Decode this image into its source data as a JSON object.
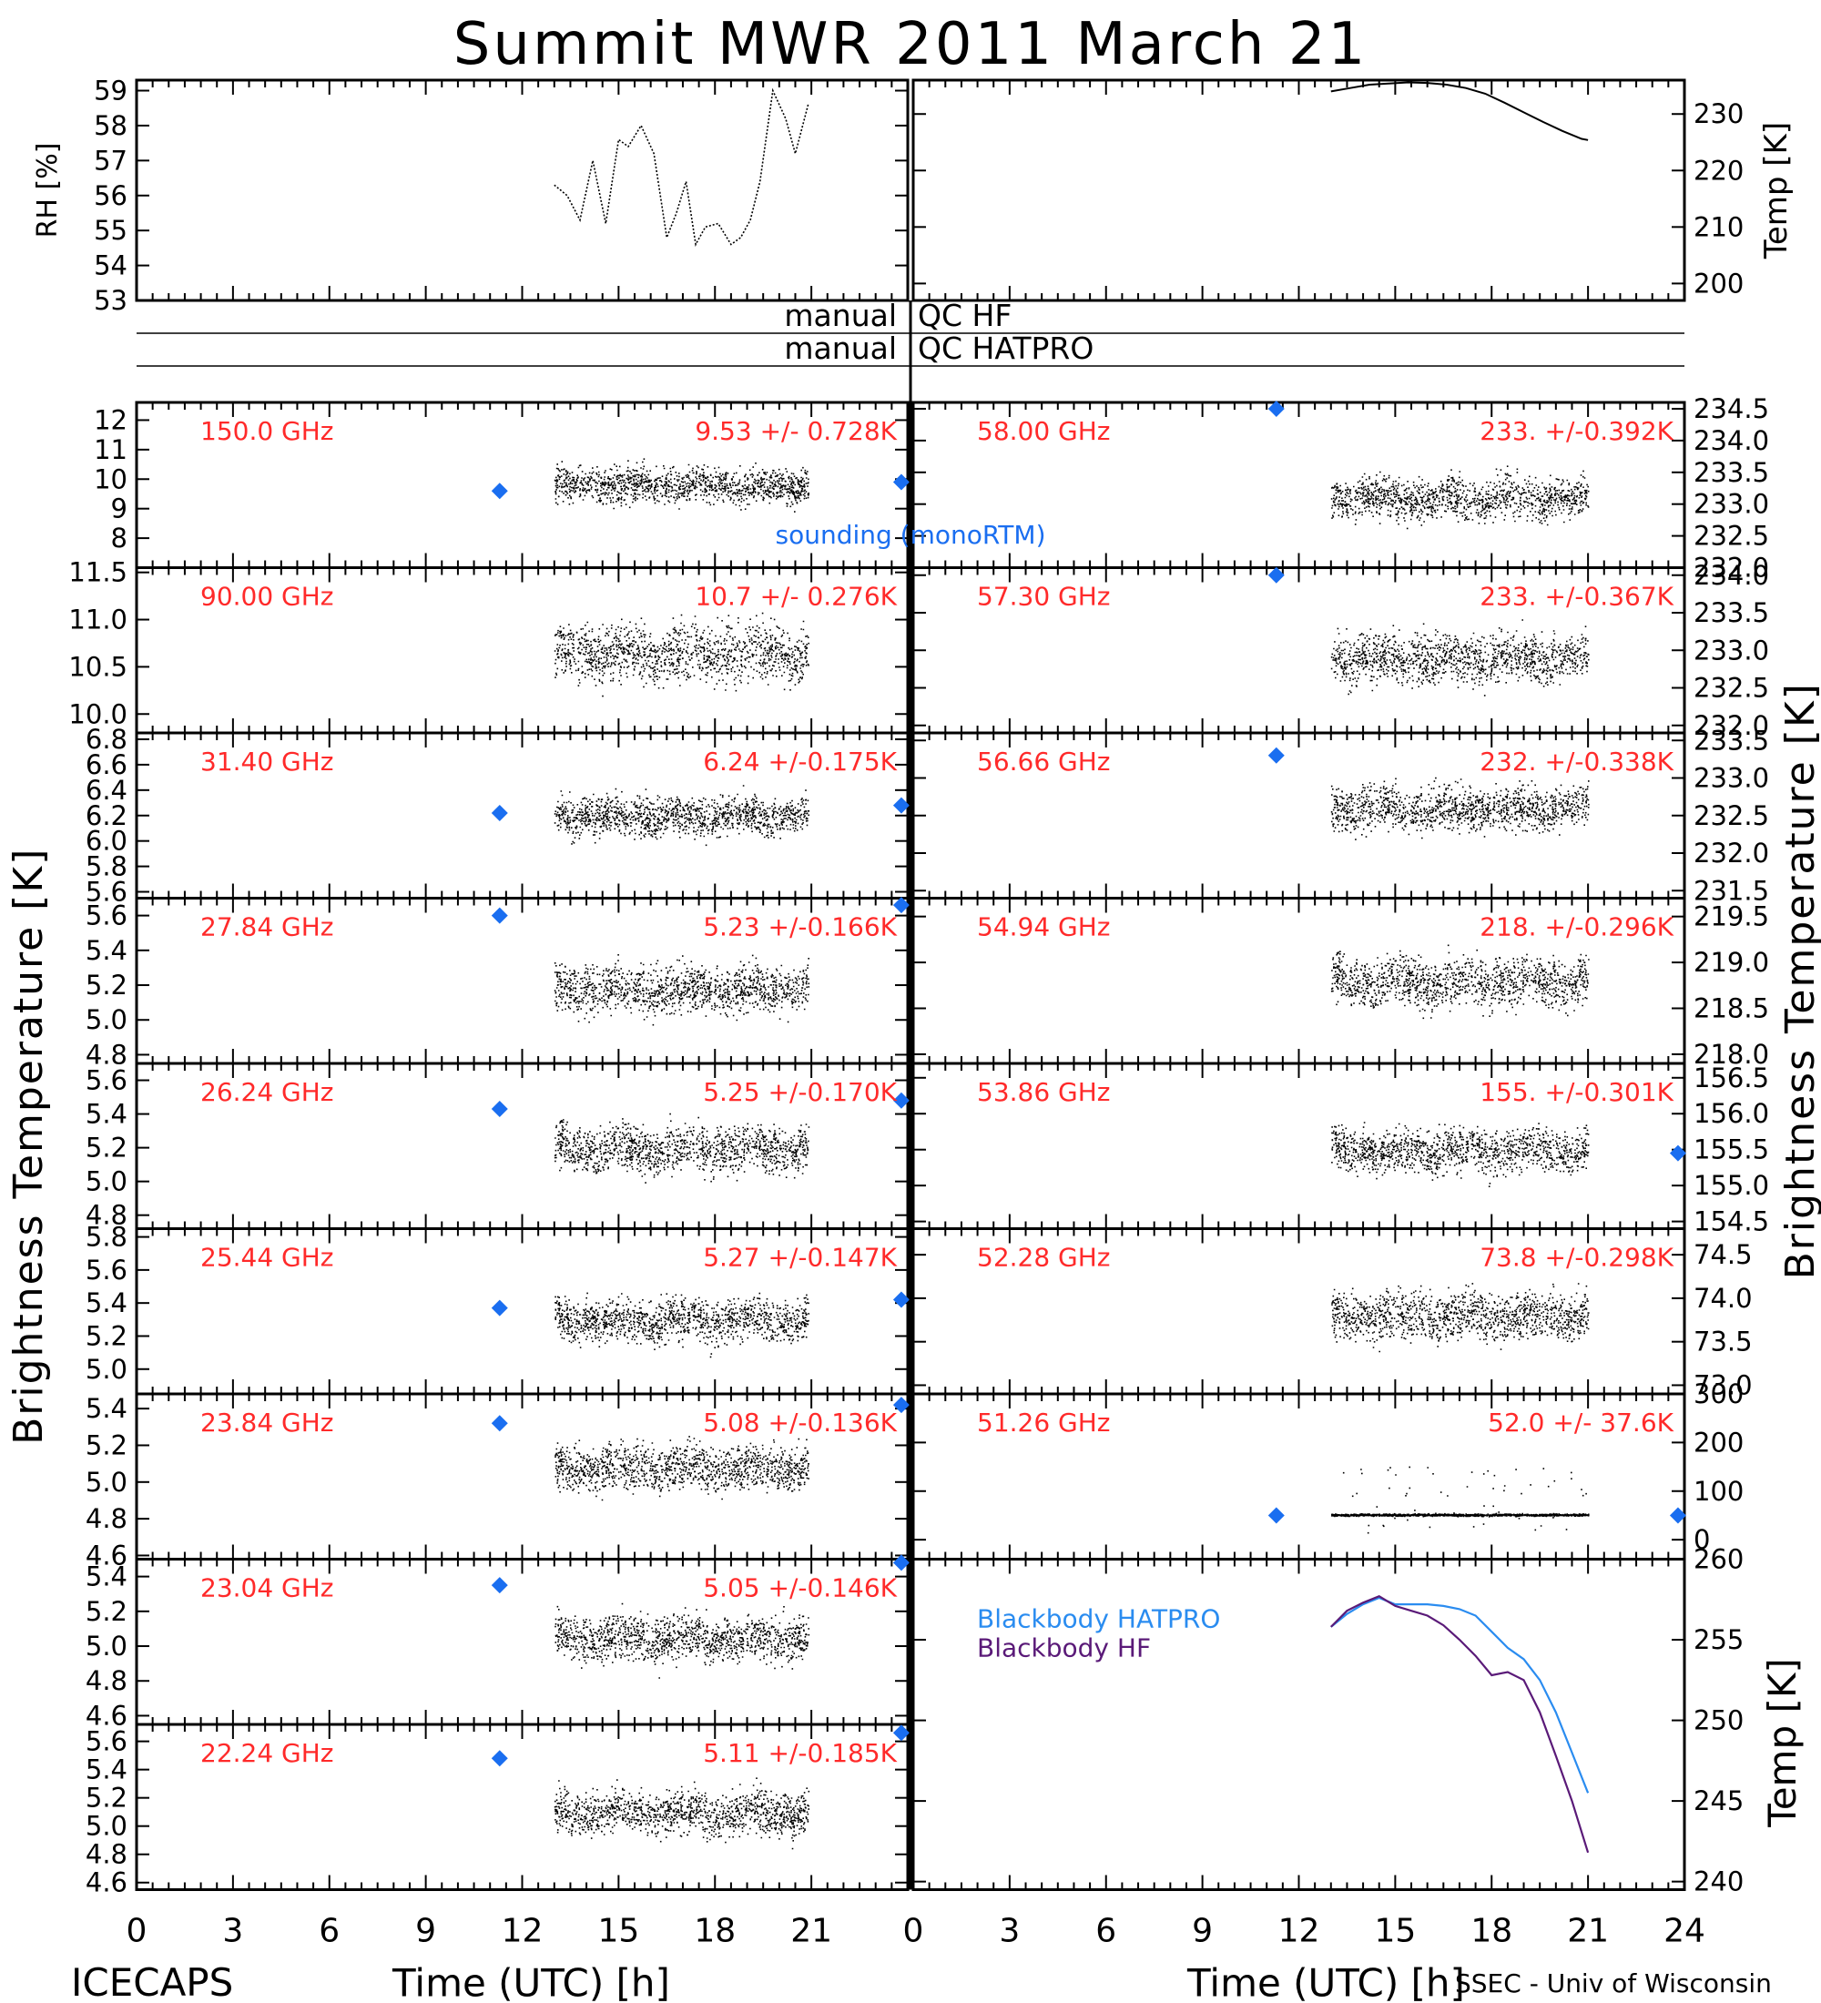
{
  "title": "Summit MWR 2011 March 21",
  "footer": {
    "left": "ICECAPS",
    "right": "SSEC - Univ of Wisconsin"
  },
  "xaxis": {
    "label": "Time (UTC) [h]",
    "ticks": [
      "0",
      "3",
      "6",
      "9",
      "12",
      "15",
      "18",
      "21",
      "24"
    ]
  },
  "axis_labels": {
    "rh": "RH [%]",
    "temp": "Temp [K]",
    "tb": "Brightness Temperature [K]"
  },
  "qc": {
    "hf": "manual QC HF",
    "hatpro": "manual QC HATPRO"
  },
  "legend": {
    "sounding": "sounding (monoRTM)",
    "bb_hatpro": "Blackbody HATPRO",
    "bb_hf": "Blackbody HF"
  },
  "colors": {
    "label": "#ff2a2a",
    "sounding": "#1a6ef0",
    "bb_hatpro": "#2a8cf0",
    "bb_hf": "#5a1a78",
    "data": "#000000"
  },
  "chart_data": [
    {
      "type": "line",
      "id": "rh",
      "ylabel": "RH [%]",
      "ylim": [
        53,
        59.3
      ],
      "yticks": [
        "53",
        "54",
        "55",
        "56",
        "57",
        "58",
        "59"
      ],
      "series": [
        {
          "x": [
            13.0,
            13.4,
            13.8,
            14.2,
            14.6,
            15.0,
            15.3,
            15.7,
            16.1,
            16.5,
            16.8,
            17.1,
            17.4,
            17.7,
            18.1,
            18.5,
            18.8,
            19.1,
            19.4,
            19.8,
            20.2,
            20.5,
            20.9
          ],
          "y": [
            56.3,
            56.0,
            55.3,
            57.0,
            55.2,
            57.6,
            57.4,
            58.0,
            57.2,
            54.8,
            55.5,
            56.4,
            54.6,
            55.1,
            55.2,
            54.6,
            54.8,
            55.3,
            56.4,
            59.0,
            58.2,
            57.2,
            58.6
          ]
        }
      ]
    },
    {
      "type": "line",
      "id": "temp",
      "ylabel": "Temp [K]",
      "ylim": [
        197,
        236
      ],
      "yticks": [
        "200",
        "210",
        "220",
        "230"
      ],
      "series": [
        {
          "x": [
            13.0,
            13.6,
            14.2,
            14.8,
            15.4,
            16.0,
            16.6,
            17.2,
            17.8,
            18.4,
            19.0,
            19.6,
            20.2,
            20.8,
            21.0
          ],
          "y": [
            234.0,
            234.6,
            235.2,
            235.4,
            235.6,
            235.5,
            235.2,
            234.6,
            233.6,
            232.0,
            230.3,
            228.6,
            227.0,
            225.6,
            225.4
          ]
        }
      ]
    },
    {
      "type": "scatter",
      "id": "ch-150",
      "label": "150.0 GHz",
      "stats": "9.53 +/- 0.728K",
      "ylim": [
        7,
        12.6
      ],
      "yticks": [
        "8",
        "9",
        "10",
        "11",
        "12"
      ],
      "mean": 9.8,
      "noise": 0.55,
      "sounding": [
        {
          "x": 11.3,
          "y": 9.6
        },
        {
          "x": 23.8,
          "y": 9.9
        }
      ]
    },
    {
      "type": "scatter",
      "id": "ch-5800",
      "label": "58.00 GHz",
      "stats": "233. +/-0.392K",
      "ylim": [
        232,
        234.6
      ],
      "yticks": [
        "232.0",
        "232.5",
        "233.0",
        "233.5",
        "234.0",
        "234.5"
      ],
      "mean": 233.1,
      "noise": 0.3,
      "sounding": [
        {
          "x": 11.3,
          "y": 234.5
        }
      ]
    },
    {
      "type": "scatter",
      "id": "ch-9000",
      "label": "90.00 GHz",
      "stats": "10.7 +/- 0.276K",
      "ylim": [
        9.8,
        11.55
      ],
      "yticks": [
        "10.0",
        "10.5",
        "11.0",
        "11.5"
      ],
      "mean": 10.65,
      "noise": 0.28,
      "sounding": []
    },
    {
      "type": "scatter",
      "id": "ch-5730",
      "label": "57.30 GHz",
      "stats": "233. +/-0.367K",
      "ylim": [
        231.9,
        234.1
      ],
      "yticks": [
        "232.0",
        "232.5",
        "233.0",
        "233.5",
        "234.0"
      ],
      "mean": 232.9,
      "noise": 0.3,
      "sounding": [
        {
          "x": 11.3,
          "y": 234.0
        }
      ]
    },
    {
      "type": "scatter",
      "id": "ch-3140",
      "label": "31.40 GHz",
      "stats": "6.24 +/-0.175K",
      "ylim": [
        5.55,
        6.85
      ],
      "yticks": [
        "5.6",
        "5.8",
        "6.0",
        "6.2",
        "6.4",
        "6.6",
        "6.8"
      ],
      "mean": 6.2,
      "noise": 0.14,
      "sounding": [
        {
          "x": 11.3,
          "y": 6.22
        },
        {
          "x": 23.8,
          "y": 6.28
        }
      ]
    },
    {
      "type": "scatter",
      "id": "ch-5666",
      "label": "56.66 GHz",
      "stats": "232. +/-0.338K",
      "ylim": [
        231.4,
        233.6
      ],
      "yticks": [
        "231.5",
        "232.0",
        "232.5",
        "233.0",
        "233.5"
      ],
      "mean": 232.6,
      "noise": 0.28,
      "sounding": [
        {
          "x": 11.3,
          "y": 233.3
        }
      ]
    },
    {
      "type": "scatter",
      "id": "ch-2784",
      "label": "27.84 GHz",
      "stats": "5.23 +/-0.166K",
      "ylim": [
        4.75,
        5.7
      ],
      "yticks": [
        "4.8",
        "5.0",
        "5.2",
        "5.4",
        "5.6"
      ],
      "mean": 5.18,
      "noise": 0.13,
      "sounding": [
        {
          "x": 11.3,
          "y": 5.6
        },
        {
          "x": 23.8,
          "y": 5.66
        }
      ]
    },
    {
      "type": "scatter",
      "id": "ch-5494",
      "label": "54.94 GHz",
      "stats": "218. +/-0.296K",
      "ylim": [
        217.9,
        219.7
      ],
      "yticks": [
        "218.0",
        "218.5",
        "219.0",
        "219.5"
      ],
      "mean": 218.8,
      "noise": 0.25,
      "sounding": []
    },
    {
      "type": "scatter",
      "id": "ch-2624",
      "label": "26.24 GHz",
      "stats": "5.25 +/-0.170K",
      "ylim": [
        4.72,
        5.7
      ],
      "yticks": [
        "4.8",
        "5.0",
        "5.2",
        "5.4",
        "5.6"
      ],
      "mean": 5.2,
      "noise": 0.13,
      "sounding": [
        {
          "x": 11.3,
          "y": 5.43
        },
        {
          "x": 23.8,
          "y": 5.48
        }
      ]
    },
    {
      "type": "scatter",
      "id": "ch-5386",
      "label": "53.86 GHz",
      "stats": "155. +/-0.301K",
      "ylim": [
        154.4,
        156.7
      ],
      "yticks": [
        "154.5",
        "155.0",
        "155.5",
        "156.0",
        "156.5"
      ],
      "mean": 155.5,
      "noise": 0.28,
      "sounding": [
        {
          "x": 23.8,
          "y": 155.45
        }
      ]
    },
    {
      "type": "scatter",
      "id": "ch-2544",
      "label": "25.44 GHz",
      "stats": "5.27 +/-0.147K",
      "ylim": [
        4.85,
        5.85
      ],
      "yticks": [
        "5.0",
        "5.2",
        "5.4",
        "5.6",
        "5.8"
      ],
      "mean": 5.3,
      "noise": 0.12,
      "sounding": [
        {
          "x": 11.3,
          "y": 5.37
        },
        {
          "x": 23.8,
          "y": 5.42
        }
      ]
    },
    {
      "type": "scatter",
      "id": "ch-5228",
      "label": "52.28 GHz",
      "stats": "73.8 +/-0.298K",
      "ylim": [
        72.9,
        74.8
      ],
      "yticks": [
        "73.0",
        "73.5",
        "74.0",
        "74.5"
      ],
      "mean": 73.8,
      "noise": 0.25,
      "sounding": []
    },
    {
      "type": "scatter",
      "id": "ch-2384",
      "label": "23.84 GHz",
      "stats": "5.08 +/-0.136K",
      "ylim": [
        4.58,
        5.48
      ],
      "yticks": [
        "4.6",
        "4.8",
        "5.0",
        "5.2",
        "5.4"
      ],
      "mean": 5.08,
      "noise": 0.11,
      "sounding": [
        {
          "x": 11.3,
          "y": 5.32
        },
        {
          "x": 23.8,
          "y": 5.42
        }
      ]
    },
    {
      "type": "scatter",
      "id": "ch-5126",
      "label": "51.26 GHz",
      "stats": "52.0 +/- 37.6K",
      "ylim": [
        -40,
        300
      ],
      "yticks": [
        "0",
        "100",
        "200",
        "300"
      ],
      "mean": 52,
      "noise": 2,
      "outliers": true,
      "sounding": [
        {
          "x": 11.3,
          "y": 50
        },
        {
          "x": 23.8,
          "y": 50
        }
      ]
    },
    {
      "type": "scatter",
      "id": "ch-2304",
      "label": "23.04 GHz",
      "stats": "5.05 +/-0.146K",
      "ylim": [
        4.55,
        5.5
      ],
      "yticks": [
        "4.6",
        "4.8",
        "5.0",
        "5.2",
        "5.4"
      ],
      "mean": 5.05,
      "noise": 0.12,
      "sounding": [
        {
          "x": 11.3,
          "y": 5.35
        },
        {
          "x": 23.8,
          "y": 5.48
        }
      ]
    },
    {
      "type": "line",
      "id": "blackbody",
      "ylabel": "Temp [K]",
      "ylim": [
        239.5,
        260
      ],
      "yticks": [
        "240",
        "245",
        "250",
        "255",
        "260"
      ],
      "series": [
        {
          "name": "Blackbody HATPRO",
          "x": [
            13.0,
            13.5,
            14.0,
            14.5,
            15.0,
            15.5,
            16.0,
            16.5,
            17.0,
            17.5,
            18.0,
            18.5,
            19.0,
            19.5,
            20.0,
            20.5,
            21.0
          ],
          "y": [
            255.8,
            256.6,
            257.2,
            257.6,
            257.2,
            257.2,
            257.2,
            257.1,
            256.9,
            256.5,
            255.5,
            254.5,
            253.8,
            252.5,
            250.5,
            248.0,
            245.5
          ]
        },
        {
          "name": "Blackbody HF",
          "x": [
            13.0,
            13.5,
            14.0,
            14.5,
            15.0,
            15.5,
            16.0,
            16.5,
            17.0,
            17.5,
            18.0,
            18.5,
            19.0,
            19.5,
            20.0,
            20.5,
            21.0
          ],
          "y": [
            255.8,
            256.8,
            257.3,
            257.7,
            257.1,
            256.8,
            256.5,
            255.9,
            255.0,
            254.0,
            252.8,
            253.0,
            252.5,
            250.5,
            247.8,
            245.0,
            241.8
          ]
        }
      ]
    },
    {
      "type": "scatter",
      "id": "ch-2224",
      "label": "22.24 GHz",
      "stats": "5.11 +/-0.185K",
      "ylim": [
        4.55,
        5.72
      ],
      "yticks": [
        "4.6",
        "4.8",
        "5.0",
        "5.2",
        "5.4",
        "5.6"
      ],
      "mean": 5.1,
      "noise": 0.14,
      "sounding": [
        {
          "x": 11.3,
          "y": 5.48
        },
        {
          "x": 23.8,
          "y": 5.66
        }
      ]
    }
  ]
}
